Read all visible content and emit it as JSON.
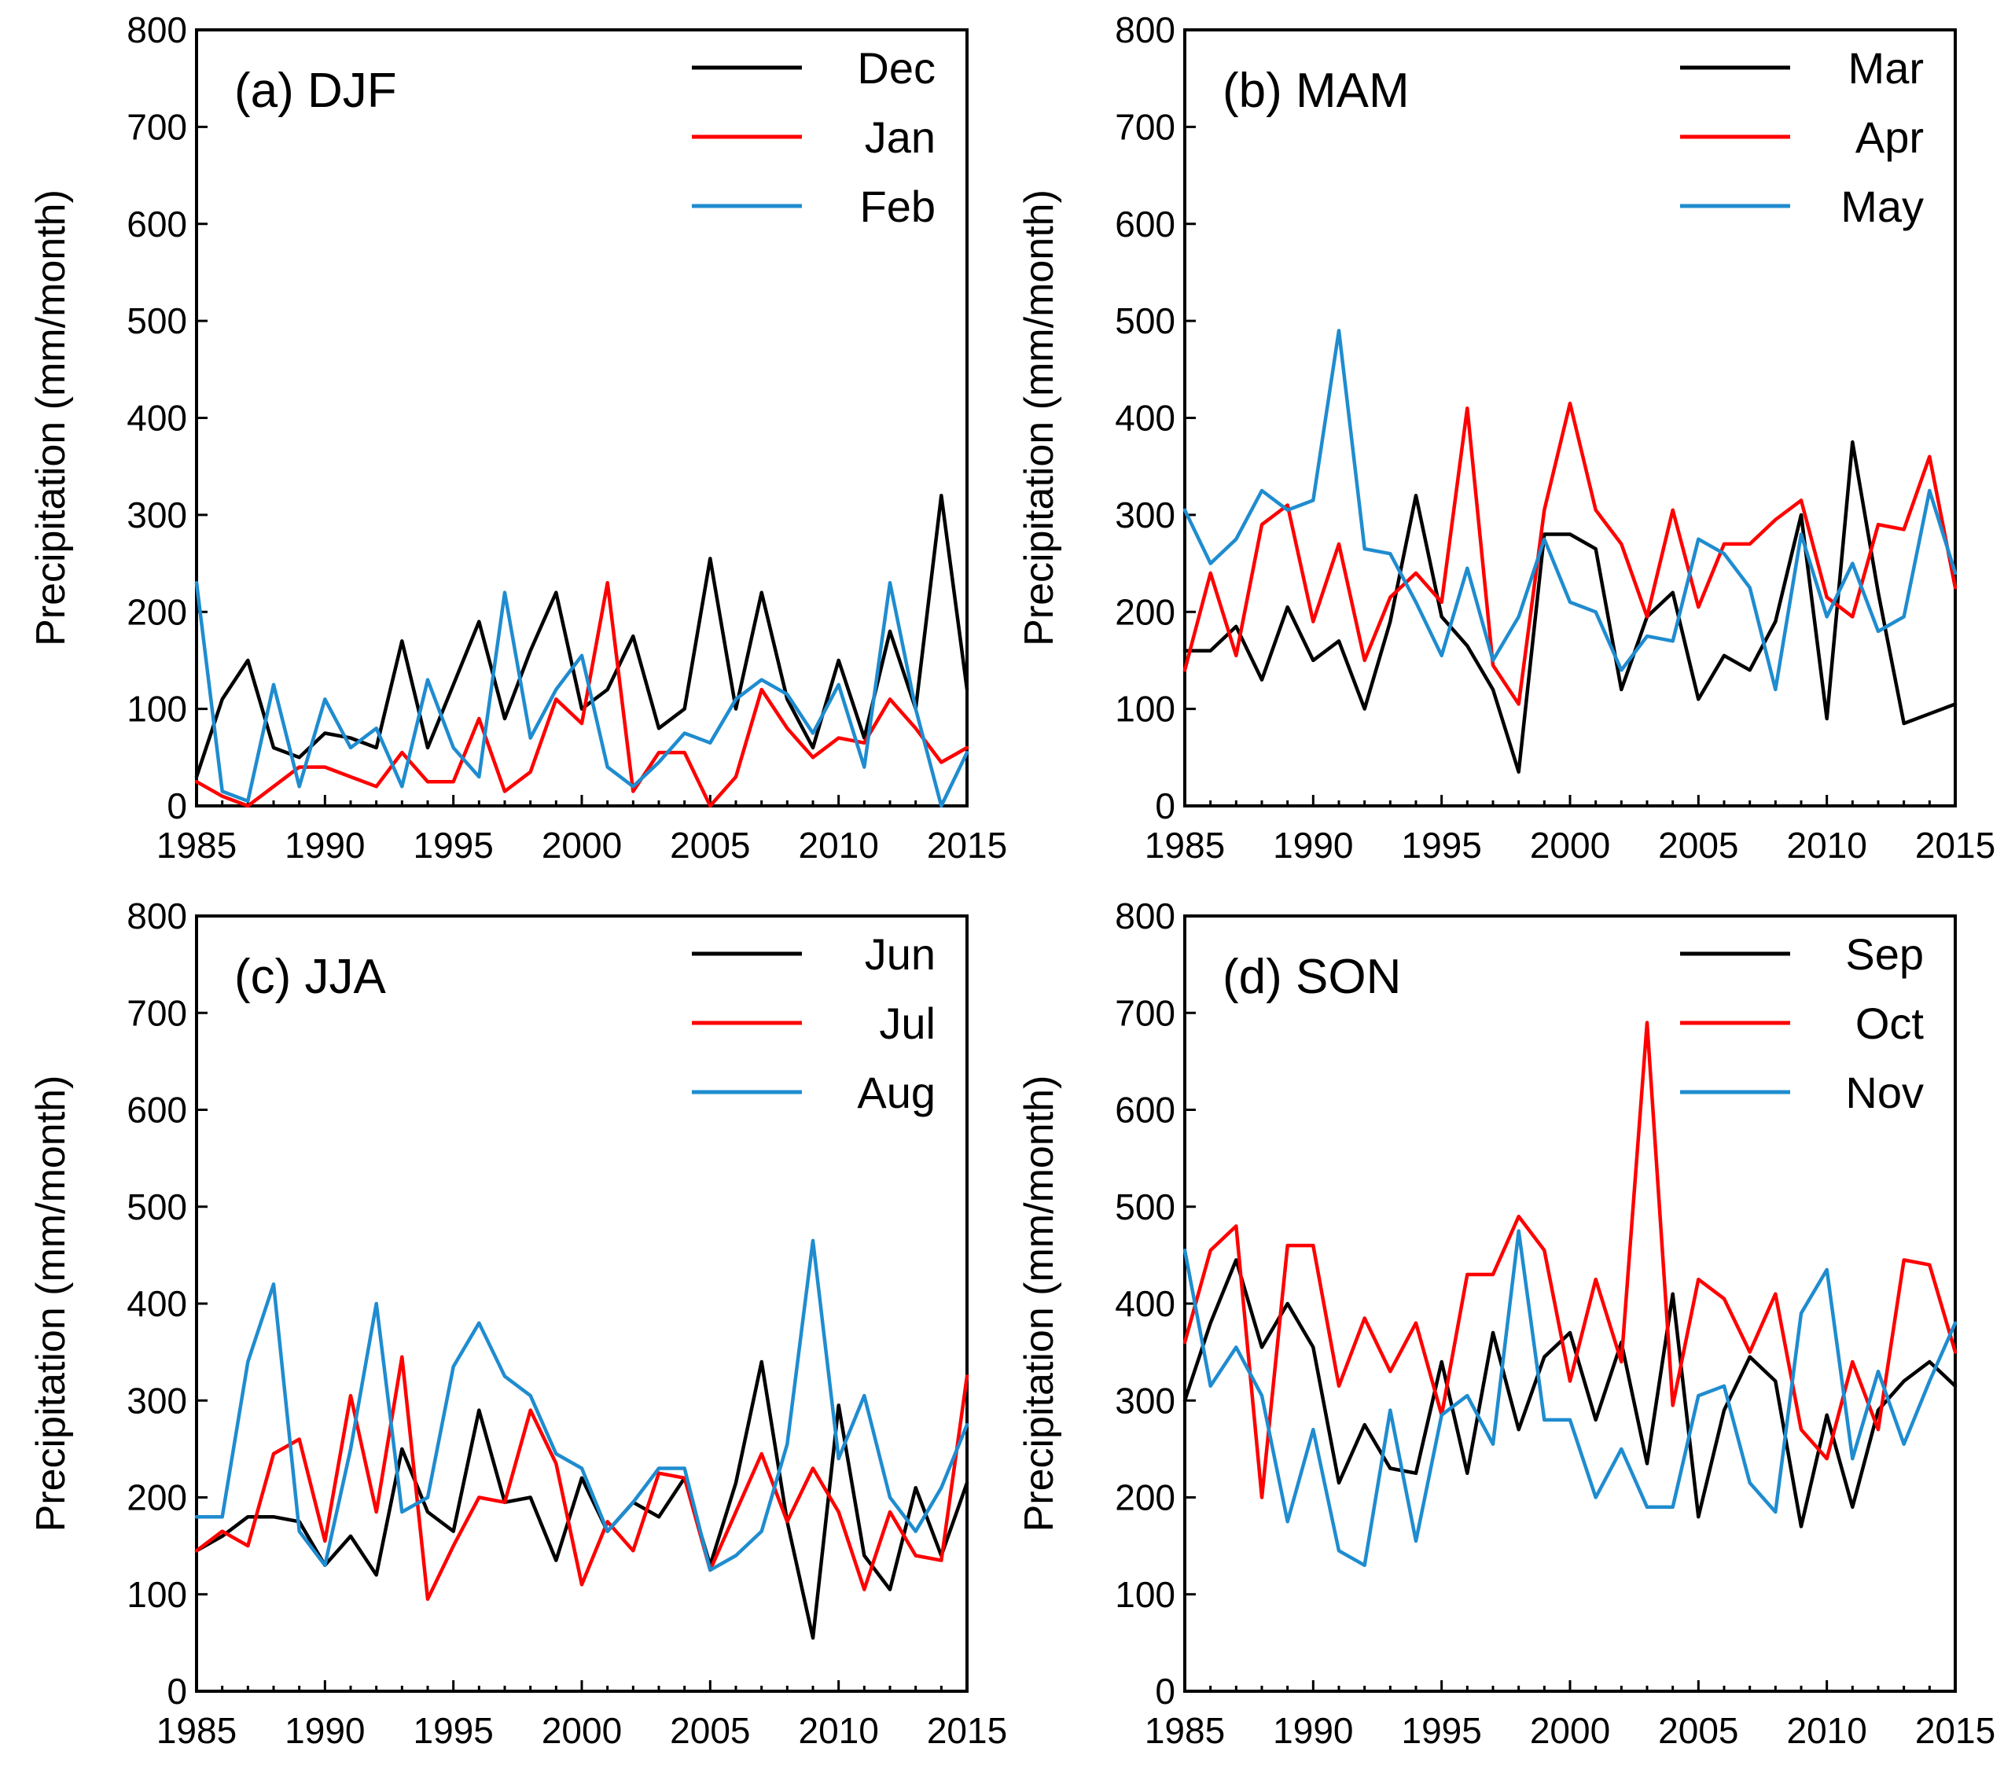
{
  "chart_data": [
    {
      "type": "line",
      "title": "(a) DJF",
      "xlabel": "",
      "ylabel": "Precipitation (mm/month)",
      "xlim": [
        1985,
        2015
      ],
      "ylim": [
        0,
        800
      ],
      "xticks": [
        1985,
        1990,
        1995,
        2000,
        2005,
        2010,
        2015
      ],
      "yticks": [
        0,
        100,
        200,
        300,
        400,
        500,
        600,
        700,
        800
      ],
      "x": [
        1985,
        1986,
        1987,
        1988,
        1989,
        1990,
        1991,
        1992,
        1993,
        1994,
        1995,
        1996,
        1997,
        1998,
        1999,
        2000,
        2001,
        2002,
        2003,
        2004,
        2005,
        2006,
        2007,
        2008,
        2009,
        2010,
        2011,
        2012,
        2013,
        2014,
        2015
      ],
      "legend_position": "top-right",
      "series": [
        {
          "name": "Dec",
          "color": "#000000",
          "values": [
            30,
            110,
            150,
            60,
            50,
            75,
            70,
            60,
            170,
            60,
            125,
            190,
            90,
            160,
            220,
            100,
            120,
            175,
            80,
            100,
            255,
            100,
            220,
            110,
            60,
            150,
            70,
            180,
            100,
            320,
            120
          ]
        },
        {
          "name": "Jan",
          "color": "#ff0000",
          "values": [
            25,
            10,
            0,
            20,
            40,
            40,
            30,
            20,
            55,
            25,
            25,
            90,
            15,
            35,
            110,
            85,
            230,
            15,
            55,
            55,
            0,
            30,
            120,
            80,
            50,
            70,
            65,
            110,
            80,
            45,
            60
          ]
        },
        {
          "name": "Feb",
          "color": "#1f8ccf",
          "values": [
            230,
            15,
            5,
            125,
            20,
            110,
            60,
            80,
            20,
            130,
            60,
            30,
            220,
            70,
            120,
            155,
            40,
            20,
            45,
            75,
            65,
            110,
            130,
            115,
            75,
            125,
            40,
            230,
            100,
            0,
            55
          ]
        }
      ]
    },
    {
      "type": "line",
      "title": "(b) MAM",
      "xlabel": "",
      "ylabel": "Precipitation (mm/month)",
      "xlim": [
        1985,
        2015
      ],
      "ylim": [
        0,
        800
      ],
      "xticks": [
        1985,
        1990,
        1995,
        2000,
        2005,
        2010,
        2015
      ],
      "yticks": [
        0,
        100,
        200,
        300,
        400,
        500,
        600,
        700,
        800
      ],
      "x": [
        1985,
        1986,
        1987,
        1988,
        1989,
        1990,
        1991,
        1992,
        1993,
        1994,
        1995,
        1996,
        1997,
        1998,
        1999,
        2000,
        2001,
        2002,
        2003,
        2004,
        2005,
        2006,
        2007,
        2008,
        2009,
        2010,
        2011,
        2012,
        2013,
        2014,
        2015
      ],
      "legend_position": "top-right",
      "series": [
        {
          "name": "Mar",
          "color": "#000000",
          "values": [
            160,
            160,
            185,
            130,
            205,
            150,
            170,
            100,
            190,
            320,
            195,
            165,
            120,
            35,
            280,
            280,
            265,
            120,
            195,
            220,
            110,
            155,
            140,
            190,
            300,
            90,
            375,
            220,
            85,
            95,
            105
          ]
        },
        {
          "name": "Apr",
          "color": "#ff0000",
          "values": [
            140,
            240,
            155,
            290,
            310,
            190,
            270,
            150,
            215,
            240,
            210,
            410,
            145,
            105,
            305,
            415,
            305,
            270,
            195,
            305,
            205,
            270,
            270,
            295,
            315,
            215,
            195,
            290,
            285,
            360,
            225
          ]
        },
        {
          "name": "May",
          "color": "#1f8ccf",
          "values": [
            305,
            250,
            275,
            325,
            305,
            315,
            490,
            265,
            260,
            210,
            155,
            245,
            150,
            195,
            275,
            210,
            200,
            140,
            175,
            170,
            275,
            260,
            225,
            120,
            280,
            195,
            250,
            180,
            195,
            325,
            240
          ]
        }
      ]
    },
    {
      "type": "line",
      "title": "(c) JJA",
      "xlabel": "",
      "ylabel": "Precipitation (mm/month)",
      "xlim": [
        1985,
        2015
      ],
      "ylim": [
        0,
        800
      ],
      "xticks": [
        1985,
        1990,
        1995,
        2000,
        2005,
        2010,
        2015
      ],
      "yticks": [
        0,
        100,
        200,
        300,
        400,
        500,
        600,
        700,
        800
      ],
      "x": [
        1985,
        1986,
        1987,
        1988,
        1989,
        1990,
        1991,
        1992,
        1993,
        1994,
        1995,
        1996,
        1997,
        1998,
        1999,
        2000,
        2001,
        2002,
        2003,
        2004,
        2005,
        2006,
        2007,
        2008,
        2009,
        2010,
        2011,
        2012,
        2013,
        2014,
        2015
      ],
      "legend_position": "top-right",
      "series": [
        {
          "name": "Jun",
          "color": "#000000",
          "values": [
            145,
            160,
            180,
            180,
            175,
            130,
            160,
            120,
            250,
            185,
            165,
            290,
            195,
            200,
            135,
            220,
            165,
            195,
            180,
            220,
            130,
            215,
            340,
            175,
            55,
            295,
            140,
            105,
            210,
            140,
            215
          ]
        },
        {
          "name": "Jul",
          "color": "#ff0000",
          "values": [
            145,
            165,
            150,
            245,
            260,
            155,
            305,
            185,
            345,
            95,
            150,
            200,
            195,
            290,
            235,
            110,
            175,
            145,
            225,
            220,
            125,
            185,
            245,
            175,
            230,
            185,
            105,
            185,
            140,
            135,
            325
          ]
        },
        {
          "name": "Aug",
          "color": "#1f8ccf",
          "values": [
            180,
            180,
            340,
            420,
            165,
            130,
            250,
            400,
            185,
            200,
            335,
            380,
            325,
            305,
            245,
            230,
            165,
            195,
            230,
            230,
            125,
            140,
            165,
            255,
            465,
            240,
            305,
            200,
            165,
            210,
            275
          ]
        }
      ]
    },
    {
      "type": "line",
      "title": "(d) SON",
      "xlabel": "",
      "ylabel": "Precipitation (mm/month)",
      "xlim": [
        1985,
        2015
      ],
      "ylim": [
        0,
        800
      ],
      "xticks": [
        1985,
        1990,
        1995,
        2000,
        2005,
        2010,
        2015
      ],
      "yticks": [
        0,
        100,
        200,
        300,
        400,
        500,
        600,
        700,
        800
      ],
      "x": [
        1985,
        1986,
        1987,
        1988,
        1989,
        1990,
        1991,
        1992,
        1993,
        1994,
        1995,
        1996,
        1997,
        1998,
        1999,
        2000,
        2001,
        2002,
        2003,
        2004,
        2005,
        2006,
        2007,
        2008,
        2009,
        2010,
        2011,
        2012,
        2013,
        2014,
        2015
      ],
      "legend_position": "top-right",
      "series": [
        {
          "name": "Sep",
          "color": "#000000",
          "values": [
            300,
            380,
            445,
            355,
            400,
            355,
            215,
            275,
            230,
            225,
            340,
            225,
            370,
            270,
            345,
            370,
            280,
            360,
            235,
            410,
            180,
            290,
            345,
            320,
            170,
            285,
            190,
            290,
            320,
            340,
            315
          ]
        },
        {
          "name": "Oct",
          "color": "#ff0000",
          "values": [
            360,
            455,
            480,
            200,
            460,
            460,
            315,
            385,
            330,
            380,
            285,
            430,
            430,
            490,
            455,
            320,
            425,
            340,
            690,
            295,
            425,
            405,
            350,
            410,
            270,
            240,
            340,
            270,
            445,
            440,
            350
          ]
        },
        {
          "name": "Nov",
          "color": "#1f8ccf",
          "values": [
            455,
            315,
            355,
            305,
            175,
            270,
            145,
            130,
            290,
            155,
            285,
            305,
            255,
            475,
            280,
            280,
            200,
            250,
            190,
            190,
            305,
            315,
            215,
            185,
            390,
            435,
            240,
            330,
            255,
            320,
            380
          ]
        }
      ]
    }
  ]
}
